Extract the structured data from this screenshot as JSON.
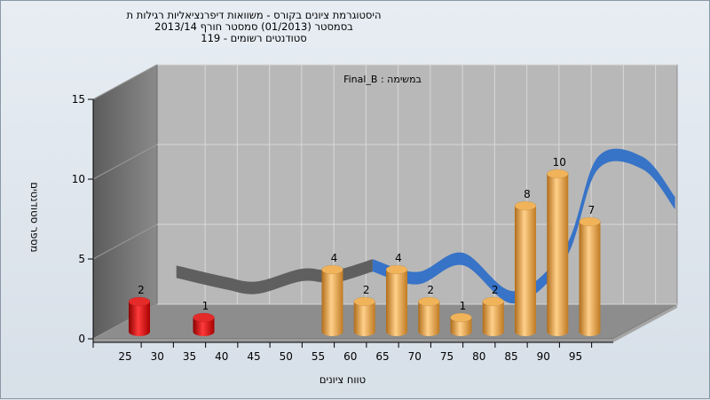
{
  "chart_data": {
    "type": "bar",
    "title": "היסטוגרמת ציונים בקורס - משוואות דיפרנציאליות רגילות ת",
    "subtitle_lines": [
      "בסמסטר  (01/2013)  סמסטר חורף 2013/14",
      "סטודנטים רשומים - 119"
    ],
    "plot_label": "Final_B : במשימה",
    "xlabel": "טווח ציונים",
    "ylabel": "מספר סטודנטים",
    "x_ticks": [
      25,
      30,
      35,
      40,
      45,
      50,
      55,
      60,
      65,
      70,
      75,
      80,
      85,
      90,
      95
    ],
    "ylim": [
      0,
      15
    ],
    "y_ticks": [
      0,
      5,
      10,
      15
    ],
    "bars": [
      {
        "x": 25,
        "value": 2,
        "label": "2",
        "color": "#d81010"
      },
      {
        "x": 35,
        "value": 1,
        "label": "1",
        "color": "#d81010"
      },
      {
        "x": 55,
        "value": 4,
        "label": "4",
        "color": "#e7a445"
      },
      {
        "x": 60,
        "value": 2,
        "label": "2",
        "color": "#e7a445"
      },
      {
        "x": 65,
        "value": 4,
        "label": "4",
        "color": "#e7a445"
      },
      {
        "x": 70,
        "value": 2,
        "label": "2",
        "color": "#e7a445"
      },
      {
        "x": 75,
        "value": 1,
        "label": "1",
        "color": "#e7a445"
      },
      {
        "x": 80,
        "value": 2,
        "label": "2",
        "color": "#e7a445"
      },
      {
        "x": 85,
        "value": 8,
        "label": "8",
        "color": "#e7a445"
      },
      {
        "x": 90,
        "value": 10,
        "label": "10",
        "color": "#e7a445"
      },
      {
        "x": 95,
        "value": 7,
        "label": "7",
        "color": "#e7a445"
      }
    ],
    "trend": {
      "type": "3d-ribbon",
      "points": [
        [
          27.5,
          3.2
        ],
        [
          35,
          2.5
        ],
        [
          40,
          2.2
        ],
        [
          47,
          3.0
        ],
        [
          52,
          2.9
        ],
        [
          58,
          3.6
        ],
        [
          65,
          2.8
        ],
        [
          72,
          4.0
        ],
        [
          80,
          1.6
        ],
        [
          88,
          4.4
        ],
        [
          93,
          10.0
        ],
        [
          100,
          10.0
        ],
        [
          105,
          7.5
        ]
      ],
      "colors": {
        "left": "#5a5a5a",
        "right": "#2f6fc7"
      }
    }
  }
}
